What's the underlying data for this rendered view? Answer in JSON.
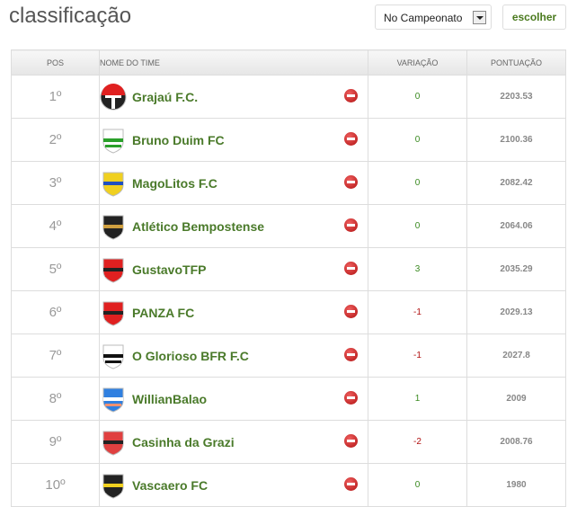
{
  "header": {
    "title": "classificação",
    "select_value": "No Campeonato",
    "button_label": "escolher"
  },
  "colors": {
    "positive": "#3a8a20",
    "negative": "#b01010",
    "team_name": "#4a7a2a"
  },
  "table": {
    "columns": [
      "POS",
      "NOME DO TIME",
      "VARIAÇÃO",
      "PONTUAÇÃO"
    ],
    "rows": [
      {
        "pos": "1º",
        "team": "Grajaú F.C.",
        "variation": "0",
        "points": "2203.53",
        "crest": {
          "shape": "circle",
          "colors": [
            "#e02020",
            "#222222",
            "#ffffff"
          ]
        }
      },
      {
        "pos": "2º",
        "team": "Bruno Duim FC",
        "variation": "0",
        "points": "2100.36",
        "crest": {
          "shape": "shield",
          "colors": [
            "#ffffff",
            "#2aa02a",
            "#2aa02a"
          ]
        }
      },
      {
        "pos": "3º",
        "team": "MagoLitos F.C",
        "variation": "0",
        "points": "2082.42",
        "crest": {
          "shape": "shield",
          "colors": [
            "#f0d020",
            "#2050c0",
            "#f0d020"
          ]
        }
      },
      {
        "pos": "4º",
        "team": "Atlético Bempostense",
        "variation": "0",
        "points": "2064.06",
        "crest": {
          "shape": "shield",
          "colors": [
            "#222222",
            "#d0a040",
            "#222222"
          ]
        }
      },
      {
        "pos": "5º",
        "team": "GustavoTFP",
        "variation": "3",
        "points": "2035.29",
        "crest": {
          "shape": "shield",
          "colors": [
            "#e02020",
            "#222222",
            "#e02020"
          ]
        }
      },
      {
        "pos": "6º",
        "team": "PANZA FC",
        "variation": "-1",
        "points": "2029.13",
        "crest": {
          "shape": "shield",
          "colors": [
            "#e02020",
            "#222222",
            "#e02020"
          ]
        }
      },
      {
        "pos": "7º",
        "team": "O Glorioso BFR F.C",
        "variation": "-1",
        "points": "2027.8",
        "crest": {
          "shape": "shield",
          "colors": [
            "#ffffff",
            "#111111",
            "#111111"
          ]
        }
      },
      {
        "pos": "8º",
        "team": "WillianBalao",
        "variation": "1",
        "points": "2009",
        "crest": {
          "shape": "shield",
          "colors": [
            "#3080e0",
            "#ffffff",
            "#f09070"
          ]
        }
      },
      {
        "pos": "9º",
        "team": "Casinha da Grazi",
        "variation": "-2",
        "points": "2008.76",
        "crest": {
          "shape": "shield",
          "colors": [
            "#e04040",
            "#222222",
            "#e04040"
          ]
        }
      },
      {
        "pos": "10º",
        "team": "Vascaero FC",
        "variation": "0",
        "points": "1980",
        "crest": {
          "shape": "shield",
          "colors": [
            "#222222",
            "#f0d020",
            "#222222"
          ]
        }
      }
    ]
  }
}
